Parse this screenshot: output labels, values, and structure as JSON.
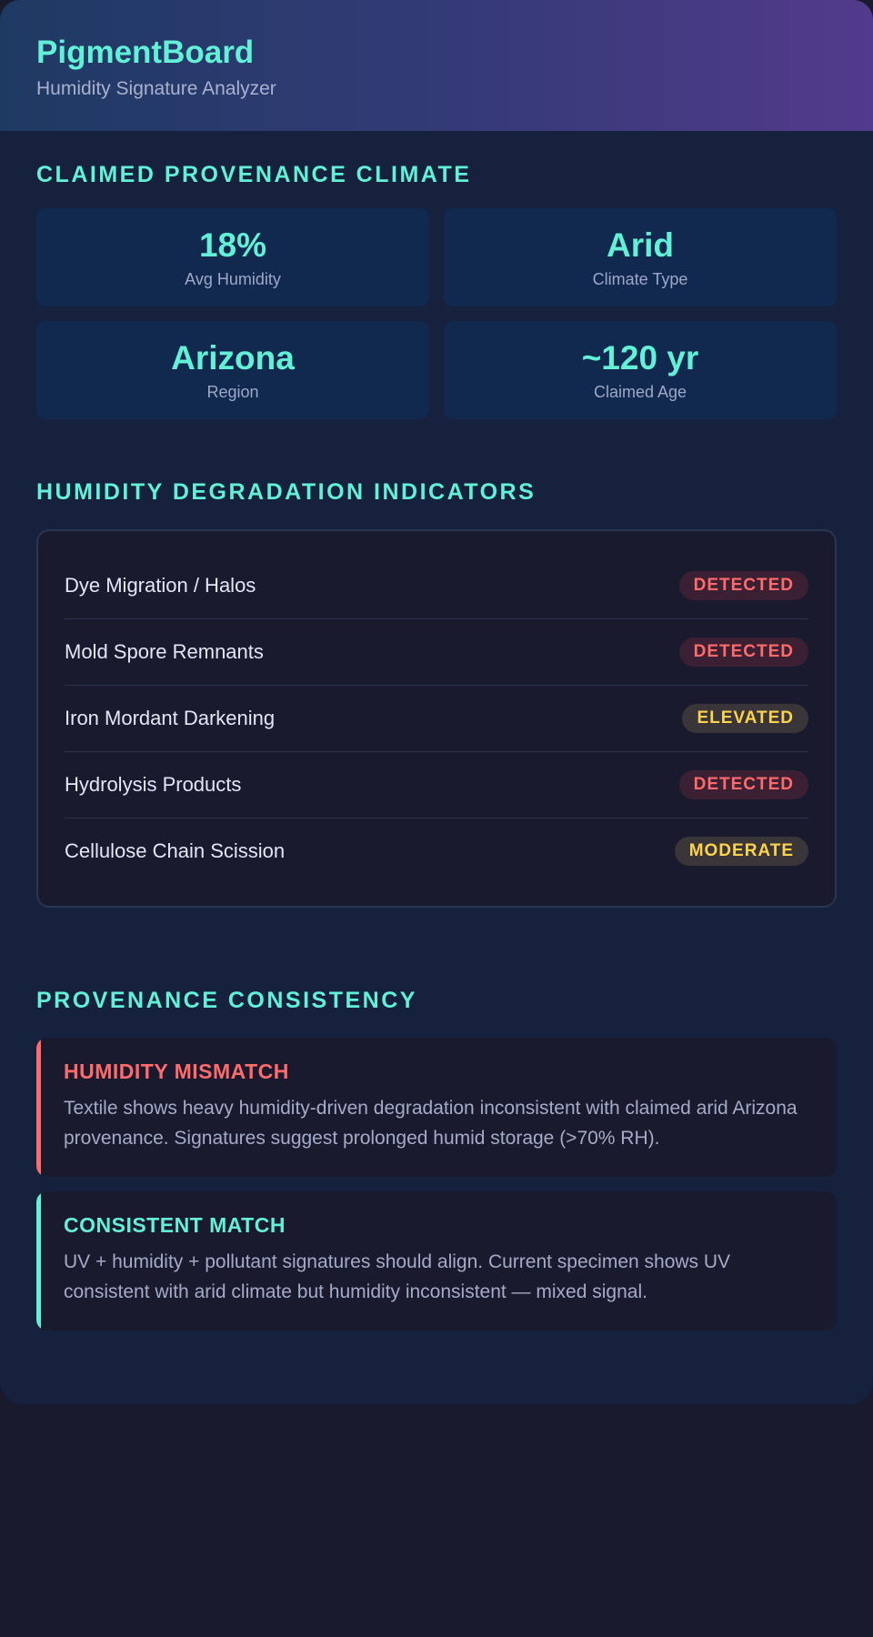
{
  "header": {
    "title": "PigmentBoard",
    "subtitle": "Humidity Signature Analyzer"
  },
  "climate": {
    "section_title": "CLAIMED PROVENANCE CLIMATE",
    "stats": [
      {
        "value": "18%",
        "label": "Avg Humidity"
      },
      {
        "value": "Arid",
        "label": "Climate Type"
      },
      {
        "value": "Arizona",
        "label": "Region"
      },
      {
        "value": "~120 yr",
        "label": "Claimed Age"
      }
    ]
  },
  "indicators": {
    "section_title": "HUMIDITY DEGRADATION INDICATORS",
    "items": [
      {
        "label": "Dye Migration / Halos",
        "status": "DETECTED"
      },
      {
        "label": "Mold Spore Remnants",
        "status": "DETECTED"
      },
      {
        "label": "Iron Mordant Darkening",
        "status": "ELEVATED"
      },
      {
        "label": "Hydrolysis Products",
        "status": "DETECTED"
      },
      {
        "label": "Cellulose Chain Scission",
        "status": "MODERATE"
      }
    ],
    "colors": {
      "detected": "#ff6b6b",
      "elevated": "#fcd34d",
      "moderate": "#fcd34d"
    }
  },
  "consistency": {
    "section_title": "PROVENANCE CONSISTENCY",
    "cards": [
      {
        "title": "HUMIDITY MISMATCH",
        "text": "Textile shows heavy humidity-driven degradation inconsistent with claimed arid Arizona provenance. Signatures suggest prolonged humid storage (>70% RH)."
      },
      {
        "title": "CONSISTENT MATCH",
        "text": "UV + humidity + pollutant signatures should align. Current specimen shows UV consistent with arid climate but humidity inconsistent — mixed signal."
      }
    ]
  }
}
